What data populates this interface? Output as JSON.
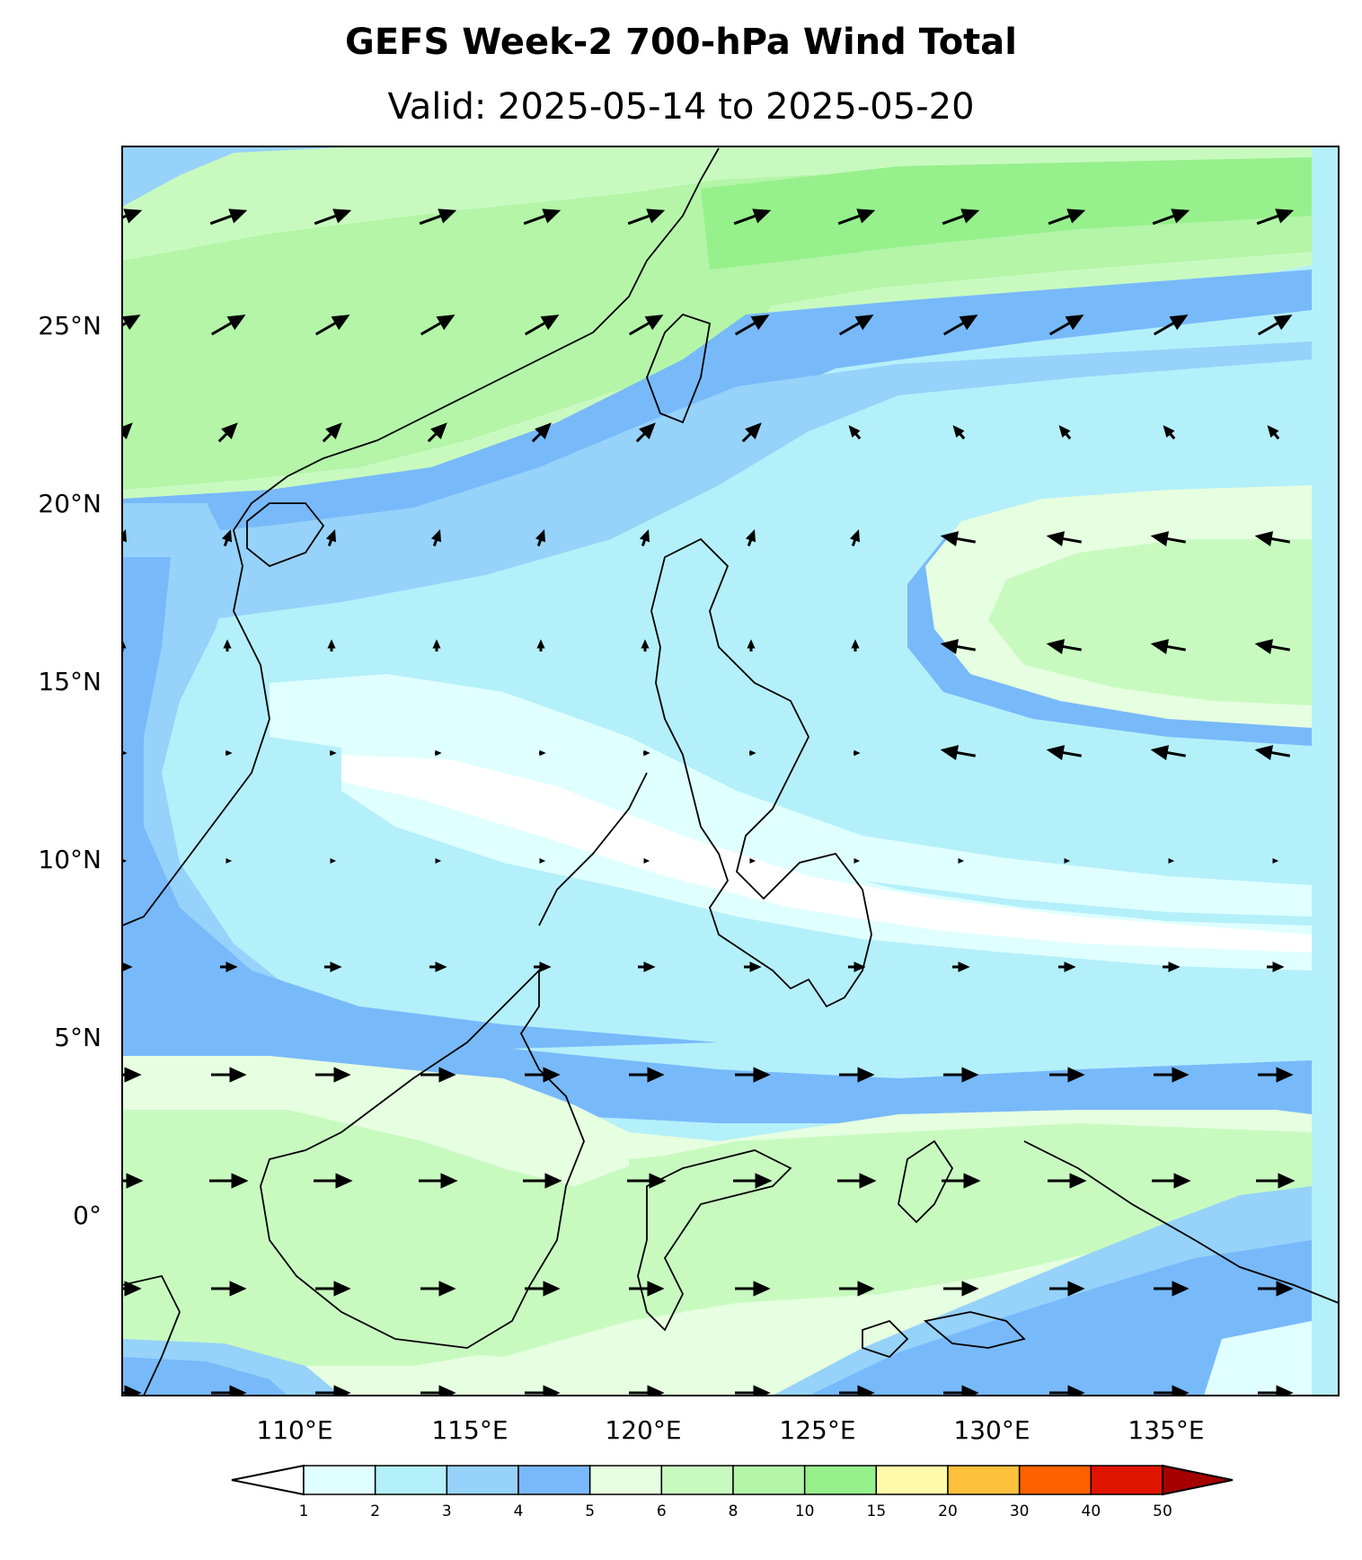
{
  "title": "GEFS Week-2 700-hPa Wind Total",
  "subtitle": "Valid: 2025-05-14 to 2025-05-20",
  "map": {
    "lon_range": [
      105,
      140
    ],
    "lat_range": [
      -5,
      30
    ],
    "lat_ticks": [
      "25°N",
      "20°N",
      "15°N",
      "10°N",
      "5°N",
      "0°"
    ],
    "lon_ticks": [
      "110°E",
      "115°E",
      "120°E",
      "125°E",
      "130°E",
      "135°E"
    ]
  },
  "colorbar": {
    "levels": [
      "1",
      "2",
      "3",
      "4",
      "5",
      "6",
      "8",
      "10",
      "15",
      "20",
      "30",
      "40",
      "50"
    ],
    "colors": [
      "#e0ffff",
      "#b4f0fa",
      "#96d2fa",
      "#78b9fa",
      "#e6ffe0",
      "#c8fac0",
      "#b4f5a8",
      "#96f08c",
      "#fffaaa",
      "#ffc03c",
      "#ff6000",
      "#e11400",
      "#a50000"
    ],
    "under_color": "#ffffff",
    "over_color": "#a50000"
  }
}
